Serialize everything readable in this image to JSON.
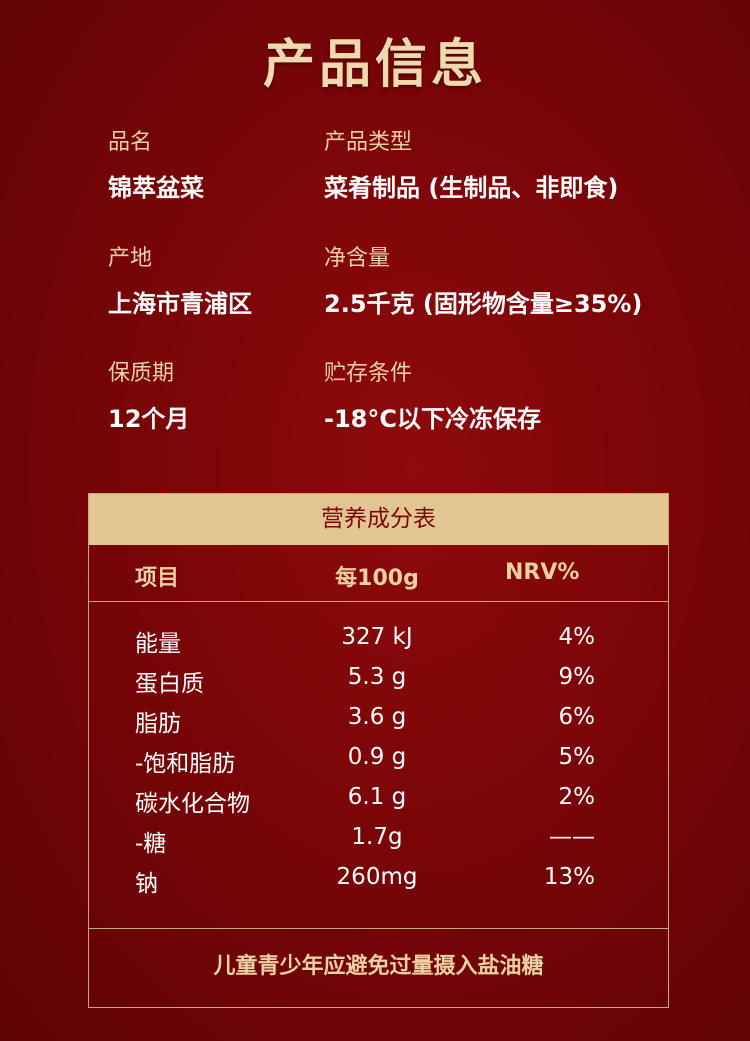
{
  "title": "产品信息",
  "info": [
    {
      "label": "品名",
      "value": "锦萃盆菜"
    },
    {
      "label": "产品类型",
      "value": "菜肴制品 (生制品、非即食)"
    },
    {
      "label": "产地",
      "value": "上海市青浦区"
    },
    {
      "label": "净含量",
      "value": "2.5千克 (固形物含量≥35%)"
    },
    {
      "label": "保质期",
      "value": "12个月"
    },
    {
      "label": "贮存条件",
      "value": "-18°C以下冷冻保存"
    }
  ],
  "nutrition": {
    "title": "营养成分表",
    "headers": [
      "项目",
      "每100g",
      "NRV%"
    ],
    "rows": [
      [
        "能量",
        "327 kJ",
        "4%"
      ],
      [
        "蛋白质",
        "5.3 g",
        "9%"
      ],
      [
        "脂肪",
        "3.6 g",
        "6%"
      ],
      [
        "-饱和脂肪",
        "0.9 g",
        "5%"
      ],
      [
        "碳水化合物",
        "6.1 g",
        "2%"
      ],
      [
        "-糖",
        "1.7g",
        "——"
      ],
      [
        "钠",
        "260mg",
        "13%"
      ]
    ],
    "footer": "儿童青少年应避免过量摄入盐油糖"
  }
}
